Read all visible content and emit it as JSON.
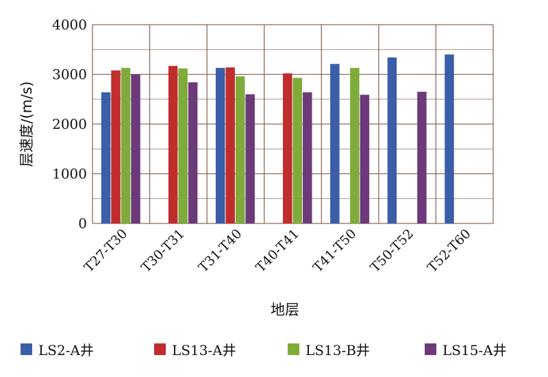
{
  "chart_data": {
    "type": "bar",
    "title": "",
    "xlabel": "地层",
    "ylabel": "层速度/(m/s)",
    "ylim": [
      0,
      4000
    ],
    "yticks": [
      "0",
      "1000",
      "2000",
      "3000",
      "4000"
    ],
    "categories": [
      "T27-T30",
      "T30-T31",
      "T31-T40",
      "T40-T41",
      "T41-T50",
      "T50-T52",
      "T52-T60"
    ],
    "grid": true,
    "legend_position": "bottom",
    "series": [
      {
        "name": "LS2-A井",
        "color": "#3b5ea8",
        "values": [
          2640,
          null,
          3130,
          null,
          3210,
          3340,
          3400
        ]
      },
      {
        "name": "LS13-A井",
        "color": "#c12d2d",
        "values": [
          3080,
          3170,
          3140,
          3020,
          null,
          null,
          null
        ]
      },
      {
        "name": "LS13-B井",
        "color": "#7fab3a",
        "values": [
          3130,
          3120,
          2960,
          2930,
          3130,
          null,
          null
        ]
      },
      {
        "name": "LS15-A井",
        "color": "#6c3a7a",
        "values": [
          3000,
          2840,
          2600,
          2640,
          2590,
          2650,
          null
        ]
      }
    ]
  }
}
